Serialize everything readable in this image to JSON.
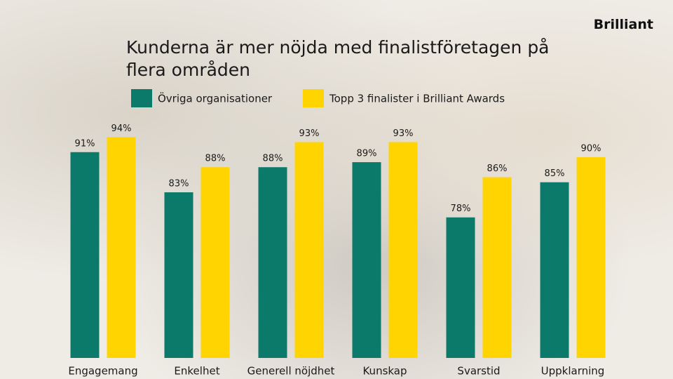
{
  "logo": "Brilliant",
  "chart_data": {
    "type": "bar",
    "title": "Kunderna är mer nöjda med finalistföretagen på flera områden",
    "categories": [
      "Engagemang",
      "Enkelhet",
      "Generell nöjdhet",
      "Kunskap",
      "Svarstid",
      "Uppklarning"
    ],
    "series": [
      {
        "name": "Övriga organisationer",
        "color": "#0b7a6b",
        "values": [
          91,
          83,
          88,
          89,
          78,
          85
        ],
        "value_labels": [
          "91%",
          "83%",
          "88%",
          "89%",
          "78%",
          "85%"
        ]
      },
      {
        "name": "Topp 3 finalister i Brilliant Awards",
        "color": "#ffd400",
        "values": [
          94,
          88,
          93,
          93,
          86,
          90
        ],
        "value_labels": [
          "94%",
          "88%",
          "93%",
          "93%",
          "86%",
          "90%"
        ]
      }
    ],
    "ylim": [
      50,
      96
    ]
  }
}
